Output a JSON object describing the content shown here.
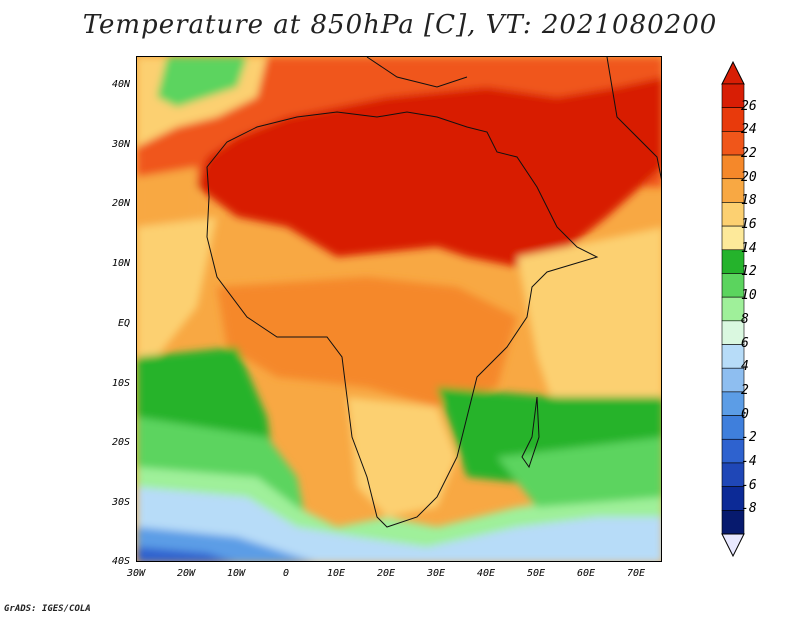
{
  "title": "Temperature at 850hPa [C], VT: 2021080200",
  "credit": "GrADS: IGES/COLA",
  "map": {
    "projection": "lat-lon",
    "lat_range": [
      -40,
      45
    ],
    "lon_range": [
      -30,
      75
    ],
    "lat_labels": [
      "40N",
      "30N",
      "20N",
      "10N",
      "EQ",
      "10S",
      "20S",
      "30S",
      "40S"
    ],
    "lon_labels": [
      "30W",
      "20W",
      "10W",
      "0",
      "10E",
      "20E",
      "30E",
      "40E",
      "50E",
      "60E",
      "70E"
    ],
    "field": "temperature_850hPa",
    "units": "C"
  },
  "colorbar": {
    "labels": [
      "26",
      "24",
      "22",
      "20",
      "18",
      "16",
      "14",
      "12",
      "10",
      "8",
      "6",
      "4",
      "2",
      "0",
      "-2",
      "-4",
      "-6",
      "-8"
    ],
    "colors": [
      "#d81e05",
      "#e83a0c",
      "#f0561a",
      "#f5882a",
      "#f8a843",
      "#fcd071",
      "#fde99a",
      "#25b32c",
      "#5bd45e",
      "#9ff09a",
      "#daf8e0",
      "#b7dcf8",
      "#8ebef0",
      "#5c9de6",
      "#3f7fdc",
      "#2e62cf",
      "#1f47b7",
      "#0c2a96",
      "#071a6e"
    ]
  }
}
